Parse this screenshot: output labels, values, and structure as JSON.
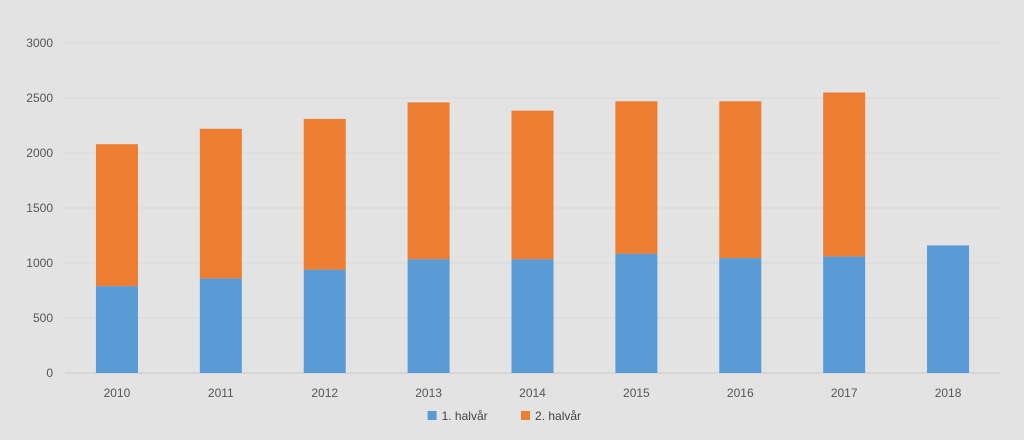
{
  "chart_data": {
    "type": "bar",
    "stacked": true,
    "title": "",
    "xlabel": "",
    "ylabel": "",
    "categories": [
      "2010",
      "2011",
      "2012",
      "2013",
      "2014",
      "2015",
      "2016",
      "2017",
      "2018"
    ],
    "series": [
      {
        "name": "1. halvår",
        "color": "#5b9bd5",
        "values": [
          790,
          860,
          940,
          1035,
          1035,
          1085,
          1045,
          1060,
          1160
        ]
      },
      {
        "name": "2. halvår",
        "color": "#ed7d31",
        "values": [
          1290,
          1360,
          1370,
          1425,
          1350,
          1385,
          1425,
          1490,
          0
        ]
      }
    ],
    "ylim": [
      0,
      3000
    ],
    "yticks": [
      0,
      500,
      1000,
      1500,
      2000,
      2500,
      3000
    ],
    "grid": true,
    "legend_position": "bottom"
  }
}
